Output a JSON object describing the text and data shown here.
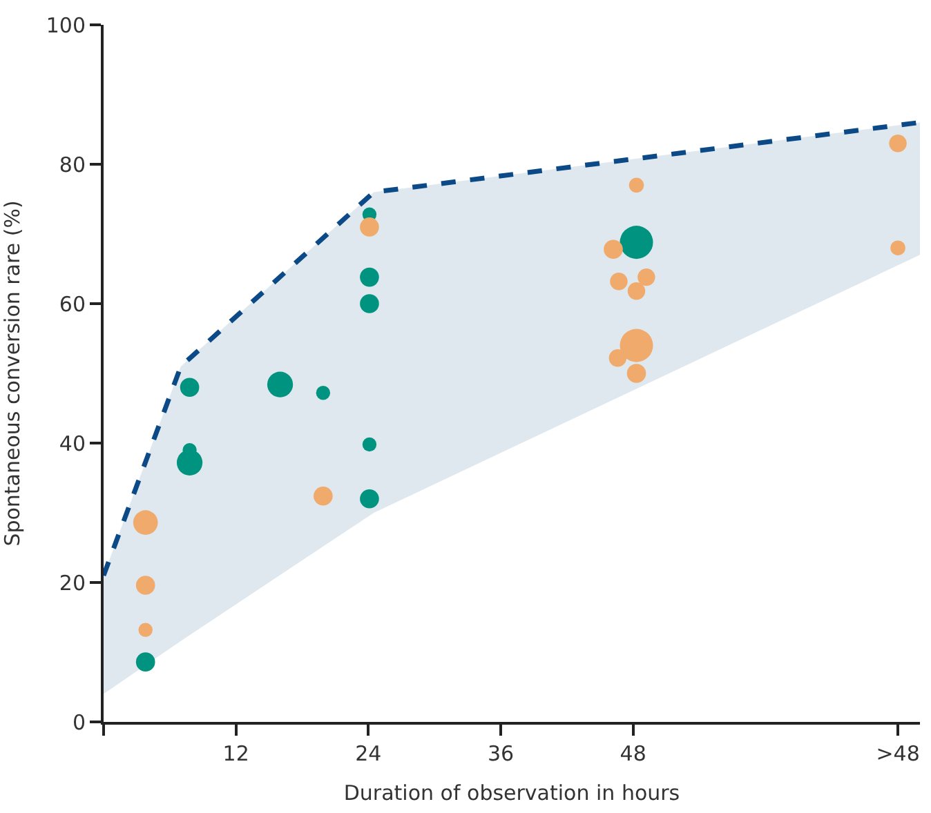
{
  "chart_data": {
    "type": "bubble",
    "xlabel": "Duration of observation in hours",
    "ylabel": "Spontaneous conversion rare (%)",
    "xlim": [
      0,
      74
    ],
    "ylim": [
      0,
      100
    ],
    "xticks": [
      {
        "value": 0,
        "label": null
      },
      12,
      24,
      36,
      48,
      {
        "value": 72,
        "label": ">48"
      }
    ],
    "yticks": [
      0,
      20,
      40,
      60,
      80,
      100
    ],
    "series": [
      {
        "type": "line",
        "color": "#0b4a87",
        "line_style": "dashed",
        "marker": "none",
        "x": [
          0,
          7,
          24.5,
          74
        ],
        "values": [
          21,
          51,
          76,
          86
        ],
        "lower": [
          4,
          11.6,
          30,
          67
        ],
        "upper": [
          21,
          51,
          76,
          86
        ]
      },
      {
        "color": "#009480",
        "x": [
          3.8,
          7.8,
          7.8,
          7.8,
          16,
          19.9,
          24.1,
          24.1,
          24.1,
          24.1,
          24.1,
          48.3
        ],
        "values": [
          8.6,
          48,
          39,
          37.2,
          48.4,
          47.2,
          72.8,
          63.8,
          60,
          39.8,
          32,
          68.8
        ],
        "sizes": [
          0.33,
          0.33,
          0.18,
          0.6,
          0.6,
          0.18,
          0.18,
          0.33,
          0.33,
          0.18,
          0.33,
          1
        ]
      },
      {
        "color": "#f0aa6c",
        "x": [
          3.8,
          3.8,
          3.8,
          19.9,
          24.1,
          46.2,
          46.7,
          48.3,
          48.3,
          49.2,
          46.6,
          48.3,
          48.3,
          72,
          72
        ],
        "values": [
          28.6,
          19.6,
          13.2,
          32.4,
          71,
          67.8,
          63.2,
          77,
          61.8,
          63.8,
          52.2,
          54,
          50,
          83,
          68
        ],
        "sizes": [
          0.55,
          0.33,
          0.18,
          0.33,
          0.33,
          0.33,
          0.28,
          0.2,
          0.28,
          0.28,
          0.28,
          1,
          0.33,
          0.28,
          0.2
        ]
      }
    ]
  }
}
